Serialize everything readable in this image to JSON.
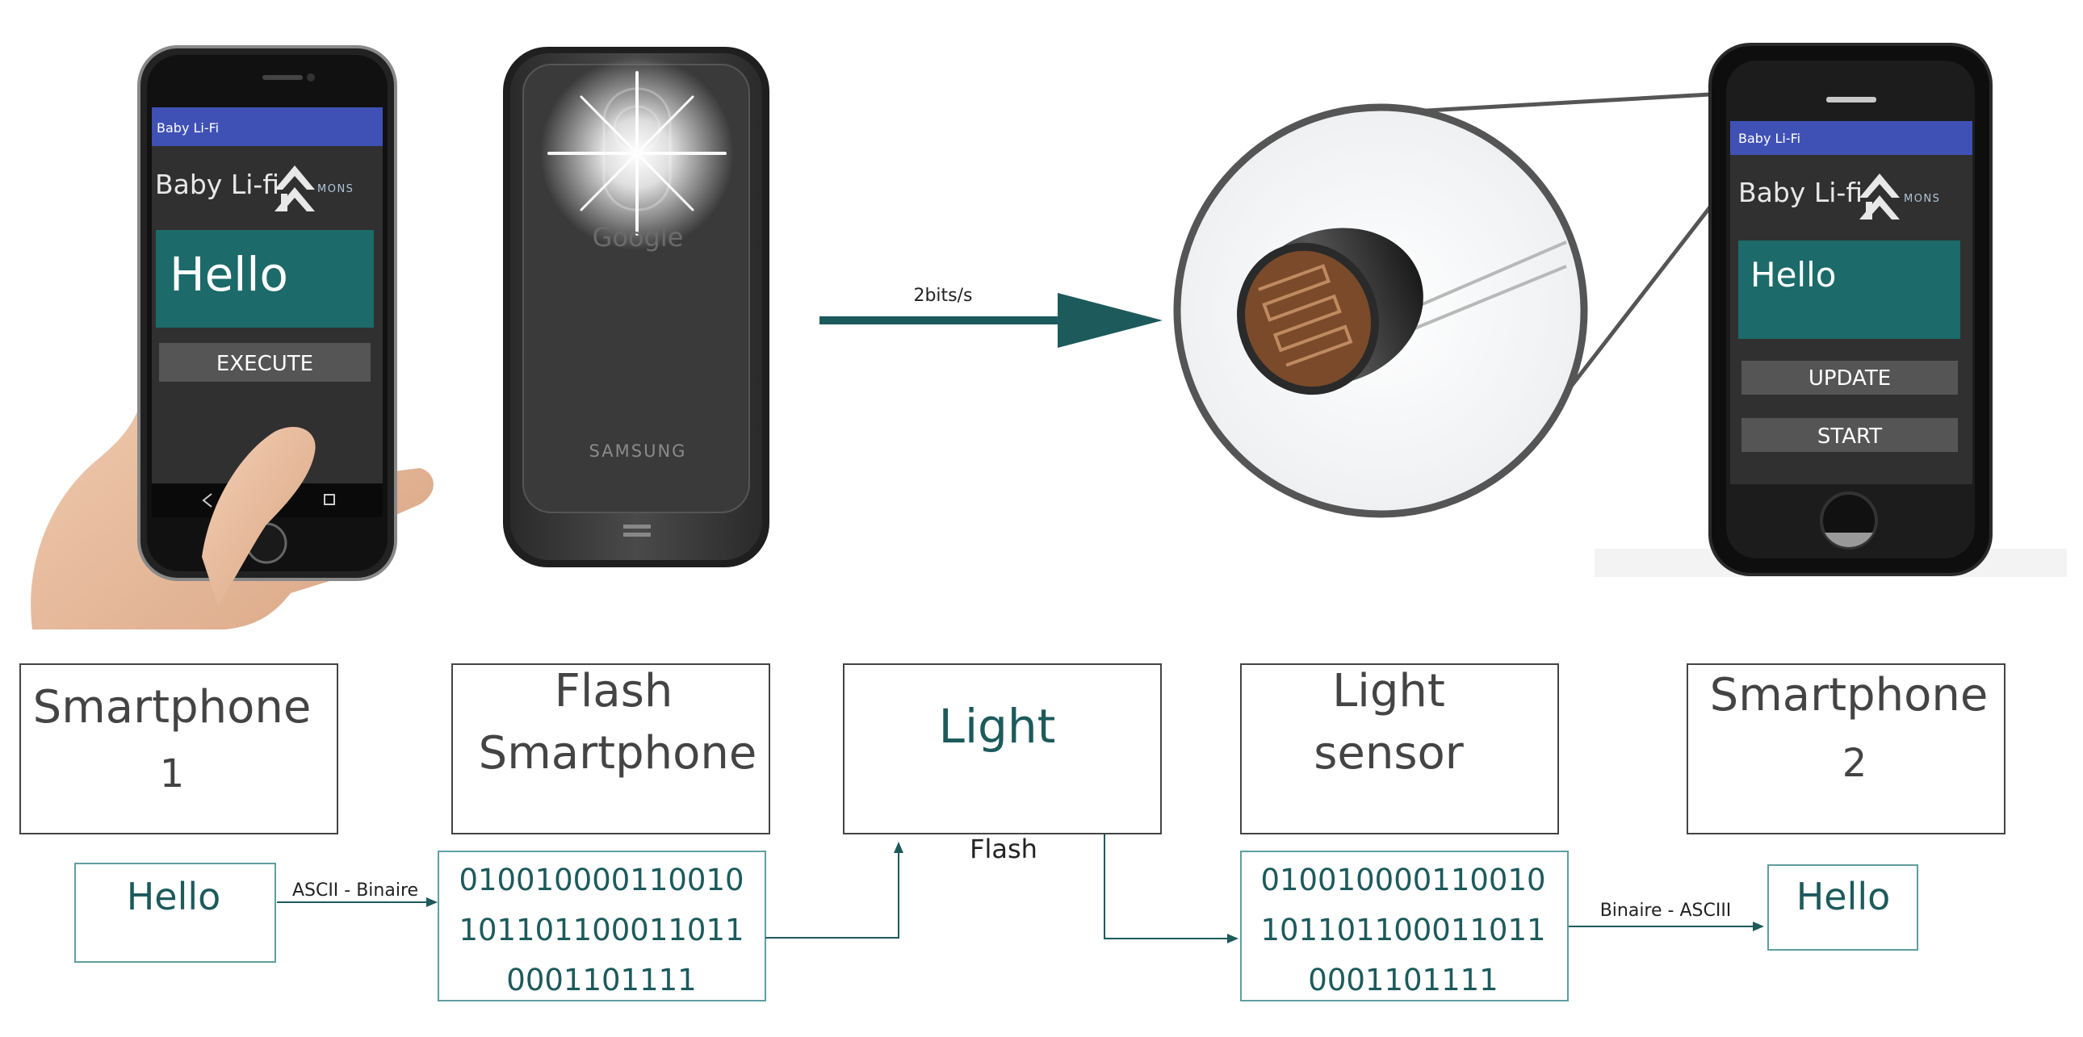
{
  "phone1": {
    "app_title": "Baby Li-Fi",
    "header_text": "Baby Li-fi",
    "logo_text": "MONS",
    "message": "Hello",
    "button": "EXECUTE"
  },
  "flash_phone": {
    "brand_top": "Google",
    "brand_bottom": "SAMSUNG"
  },
  "transfer": {
    "rate": "2bits/s"
  },
  "phone2": {
    "app_title": "Baby Li-Fi",
    "header_text": "Baby Li-fi",
    "logo_text": "MONS",
    "message": "Hello",
    "button_update": "UPDATE",
    "button_start": "START"
  },
  "flow": {
    "boxes": {
      "smartphone1": {
        "line1": "Smartphone",
        "line2": "1"
      },
      "flash": {
        "line1": "Flash",
        "line2": "Smartphone"
      },
      "light": {
        "line1": "Light"
      },
      "sensor": {
        "line1": "Light",
        "line2": "sensor"
      },
      "smartphone2": {
        "line1": "Smartphone",
        "line2": "2"
      }
    },
    "hello_in": "Hello",
    "hello_out": "Hello",
    "ascii_to_binary": "ASCII - Binaire",
    "binary_to_ascii": "Binaire - ASCIII",
    "flash_label": "Flash",
    "binary_left": [
      "010010000110010",
      "101101100011011",
      "0001101111"
    ],
    "binary_right": [
      "010010000110010",
      "101101100011011",
      "0001101111"
    ]
  },
  "colors": {
    "teal": "#1d5a5c",
    "teal_fill": "#1c6a6a",
    "app_bar": "#3f51b5",
    "box_border": "#444444",
    "teal_border": "#5f9ea0"
  }
}
